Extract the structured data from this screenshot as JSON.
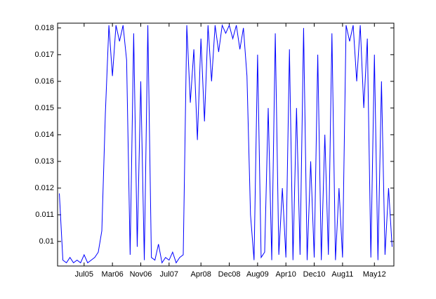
{
  "chart_data": {
    "type": "line",
    "categories": [
      null,
      null,
      null,
      null,
      null,
      null,
      null,
      "Jul05",
      null,
      null,
      null,
      null,
      null,
      null,
      null,
      "Mar06",
      null,
      null,
      null,
      null,
      null,
      null,
      null,
      "Nov06",
      null,
      null,
      null,
      null,
      null,
      null,
      null,
      "Jul07",
      null,
      null,
      null,
      null,
      null,
      null,
      null,
      null,
      "Apr08",
      null,
      null,
      null,
      null,
      null,
      null,
      null,
      "Dec08",
      null,
      null,
      null,
      null,
      null,
      null,
      null,
      "Aug09",
      null,
      null,
      null,
      null,
      null,
      null,
      null,
      "Apr10",
      null,
      null,
      null,
      null,
      null,
      null,
      null,
      "Dec10",
      null,
      null,
      null,
      null,
      null,
      null,
      null,
      "Aug11",
      null,
      null,
      null,
      null,
      null,
      null,
      null,
      null,
      "May12",
      null,
      null,
      null,
      null,
      null
    ],
    "values": [
      0.0118,
      0.0093,
      0.0092,
      0.0094,
      0.0092,
      0.0093,
      0.0092,
      0.0095,
      0.0092,
      0.0093,
      0.0094,
      0.0096,
      0.0104,
      0.0148,
      0.0181,
      0.0162,
      0.0181,
      0.0175,
      0.0181,
      0.0168,
      0.0095,
      0.0178,
      0.0098,
      0.016,
      0.0093,
      0.0181,
      0.0094,
      0.0093,
      0.0099,
      0.0092,
      0.0094,
      0.0093,
      0.0096,
      0.0092,
      0.0094,
      0.0095,
      0.0181,
      0.0152,
      0.0172,
      0.0138,
      0.0176,
      0.0145,
      0.0181,
      0.016,
      0.0181,
      0.0171,
      0.0181,
      0.0178,
      0.0181,
      0.0176,
      0.0181,
      0.0172,
      0.018,
      0.0162,
      0.011,
      0.0093,
      0.017,
      0.0094,
      0.0096,
      0.015,
      0.0093,
      0.0178,
      0.0095,
      0.012,
      0.0094,
      0.0172,
      0.0093,
      0.015,
      0.0095,
      0.018,
      0.0093,
      0.013,
      0.0094,
      0.017,
      0.0093,
      0.014,
      0.0095,
      0.0178,
      0.0093,
      0.012,
      0.0094,
      0.0181,
      0.0175,
      0.0181,
      0.016,
      0.0181,
      0.015,
      0.0176,
      0.0094,
      0.017,
      0.0093,
      0.016,
      0.0095,
      0.012,
      0.0098
    ],
    "color": "#0000ff",
    "ylim": [
      0.00908,
      0.01818
    ],
    "yticks": [
      0.01,
      0.011,
      0.012,
      0.013,
      0.014,
      0.015,
      0.016,
      0.017,
      0.018
    ]
  }
}
